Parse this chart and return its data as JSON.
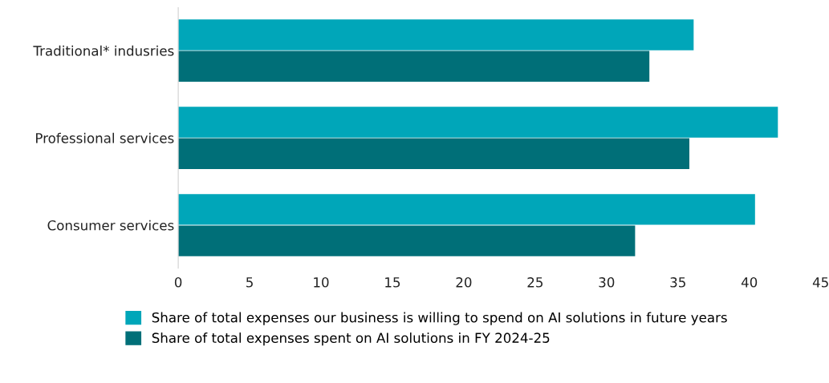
{
  "chart_data": {
    "type": "bar",
    "orientation": "horizontal",
    "categories": [
      "Traditional* indusries",
      "Professional services",
      "Consumer services"
    ],
    "series": [
      {
        "name": "Share of total expenses our business is willing to spend on AI solutions in future years",
        "color": "#00a6b9",
        "values": [
          36.1,
          42.0,
          40.4
        ]
      },
      {
        "name": "Share of total expenses spent on AI solutions in FY 2024-25",
        "color": "#006f78",
        "values": [
          33.0,
          35.8,
          32.0
        ]
      }
    ],
    "xlim": [
      0,
      45
    ],
    "xticks": [
      0,
      5,
      10,
      15,
      20,
      25,
      30,
      35,
      40,
      45
    ],
    "grid": false,
    "legend": "bottom"
  }
}
